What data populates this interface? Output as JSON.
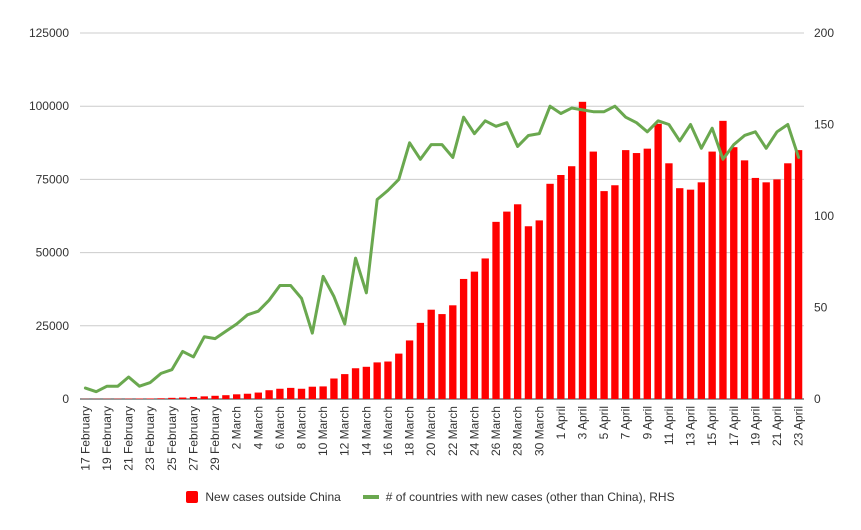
{
  "chart_data": {
    "type": "bar+line",
    "title": "",
    "xlabel": "",
    "ylabel_left": "",
    "ylabel_right": "",
    "categories": [
      "17 February",
      "18 February",
      "19 February",
      "20 February",
      "21 February",
      "22 February",
      "23 February",
      "24 February",
      "25 February",
      "26 February",
      "27 February",
      "28 February",
      "29 February",
      "1 March",
      "2 March",
      "3 March",
      "4 March",
      "5 March",
      "6 March",
      "7 March",
      "8 March",
      "9 March",
      "10 March",
      "11 March",
      "12 March",
      "13 March",
      "14 March",
      "15 March",
      "16 March",
      "17 March",
      "18 March",
      "19 March",
      "20 March",
      "21 March",
      "22 March",
      "23 March",
      "24 March",
      "25 March",
      "26 March",
      "27 March",
      "28 March",
      "29 March",
      "30 March",
      "31 March",
      "1 April",
      "2 April",
      "3 April",
      "4 April",
      "5 April",
      "6 April",
      "7 April",
      "8 April",
      "9 April",
      "10 April",
      "11 April",
      "12 April",
      "13 April",
      "14 April",
      "15 April",
      "16 April",
      "17 April",
      "18 April",
      "19 April",
      "20 April",
      "21 April",
      "22 April",
      "23 April"
    ],
    "x_tick_labels": [
      "17 February",
      "19 February",
      "21 February",
      "23 February",
      "25 February",
      "27 February",
      "29 February",
      "2 March",
      "4 March",
      "6 March",
      "8 March",
      "10 March",
      "12 March",
      "14 March",
      "16 March",
      "18 March",
      "20 March",
      "22 March",
      "24 March",
      "26 March",
      "28 March",
      "30 March",
      "1 April",
      "3 April",
      "5 April",
      "7 April",
      "9 April",
      "11 April",
      "13 April",
      "15 April",
      "17 April",
      "19 April",
      "21 April",
      "23 April"
    ],
    "y_left": {
      "ticks": [
        "0",
        "25000",
        "50000",
        "75000",
        "100000",
        "125000"
      ],
      "min": 0,
      "max": 125000
    },
    "y_right": {
      "ticks": [
        "0",
        "50",
        "100",
        "150",
        "200"
      ],
      "min": 0,
      "max": 200
    },
    "grid": true,
    "legend_position": "bottom",
    "series": [
      {
        "name": "New cases outside China",
        "type": "bar",
        "axis": "left",
        "color": "#ff0000",
        "values": [
          50,
          60,
          80,
          100,
          120,
          150,
          180,
          250,
          400,
          500,
          700,
          900,
          1100,
          1300,
          1600,
          1800,
          2200,
          3000,
          3500,
          3800,
          3500,
          4200,
          4300,
          7000,
          8500,
          10500,
          11000,
          12500,
          12800,
          15500,
          20000,
          26000,
          30500,
          29000,
          32000,
          41000,
          43500,
          48000,
          60500,
          64000,
          66500,
          59000,
          61000,
          73500,
          76500,
          79500,
          101500,
          84500,
          71000,
          73000,
          85000,
          84000,
          85500,
          94000,
          80500,
          72000,
          71500,
          74000,
          84500,
          95000,
          86000,
          81500,
          75500,
          74000,
          75000,
          80500,
          85000
        ]
      },
      {
        "name": "# of countries with new cases (other than China), RHS",
        "type": "line",
        "axis": "right",
        "color": "#6aa84f",
        "values": [
          6,
          4,
          7,
          7,
          12,
          7,
          9,
          14,
          16,
          26,
          23,
          34,
          33,
          37,
          41,
          46,
          48,
          54,
          62,
          62,
          55,
          36,
          67,
          56,
          41,
          77,
          58,
          109,
          114,
          120,
          140,
          131,
          139,
          139,
          132,
          154,
          145,
          152,
          149,
          151,
          138,
          144,
          145,
          160,
          156,
          159,
          158,
          157,
          157,
          160,
          154,
          151,
          146,
          152,
          150,
          141,
          150,
          137,
          148,
          131,
          139,
          144,
          146,
          137,
          146,
          150,
          132
        ]
      }
    ]
  }
}
